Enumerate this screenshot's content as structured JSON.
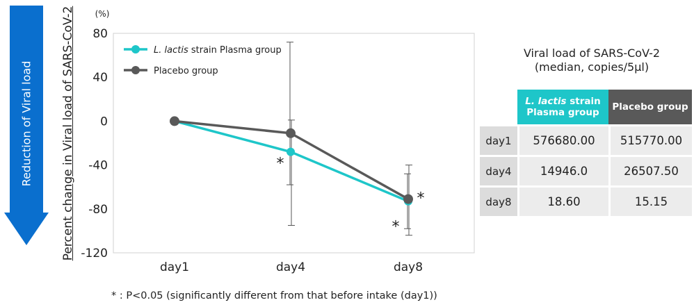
{
  "arrow": {
    "label": "Reduction of Viral load",
    "color": "#0a6fce"
  },
  "chart_data": {
    "type": "line",
    "ylabel": "Percent change in Viral load of SARS-CoV-2",
    "yunit": "(%)",
    "categories": [
      "day1",
      "day4",
      "day8"
    ],
    "ylim": [
      -120,
      80
    ],
    "yticks": [
      80,
      40,
      0,
      -40,
      -80,
      -120
    ],
    "legend_position": "top-left",
    "series": [
      {
        "name": "L. lactis strain Plasma group",
        "name_italic": "L. lactis",
        "name_rest": " strain Plasma group",
        "color": "#1ec6c9",
        "values": [
          0,
          -28,
          -73
        ],
        "error": [
          [
            0,
            0
          ],
          [
            -58,
            72
          ],
          [
            -98,
            -48
          ]
        ]
      },
      {
        "name": "Placebo group",
        "color": "#595959",
        "values": [
          0,
          -11,
          -71
        ],
        "error": [
          [
            0,
            0
          ],
          [
            -95,
            1
          ],
          [
            -104,
            -40
          ]
        ]
      }
    ],
    "significance": [
      {
        "category": "day4",
        "series": 0,
        "label": "*"
      },
      {
        "category": "day8",
        "series": 0,
        "label": "*"
      },
      {
        "category": "day8",
        "series": 1,
        "label": "*"
      }
    ]
  },
  "footnote": "* : P<0.05 (significantly different from that before intake (day1))",
  "table": {
    "title_line1": "Viral load of SARS-CoV-2",
    "title_line2": "(median, copies/5μl)",
    "header_lactis_italic": "L. lactis",
    "header_lactis_rest": " strain",
    "header_lactis_line2": "Plasma group",
    "header_placebo": "Placebo group",
    "rows": [
      {
        "day": "day1",
        "lactis": "576680.00",
        "placebo": "515770.00"
      },
      {
        "day": "day4",
        "lactis": "14946.0",
        "placebo": "26507.50"
      },
      {
        "day": "day8",
        "lactis": "18.60",
        "placebo": "15.15"
      }
    ]
  }
}
